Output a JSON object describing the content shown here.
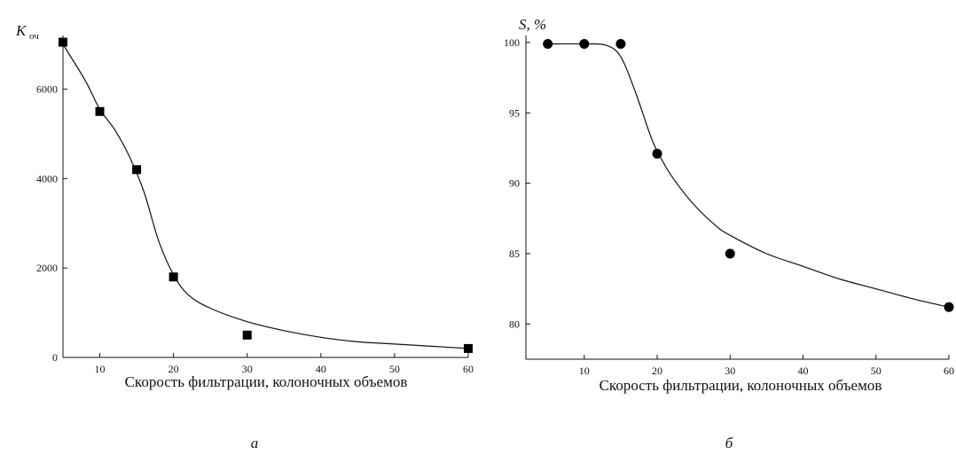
{
  "chart_data": [
    {
      "type": "scatter",
      "panel_label": "а",
      "ylabel_main": "K",
      "ylabel_sub": "оч",
      "xlabel": "Скорость фильтрации, колоночных объемов",
      "x_ticks": [
        "10",
        "20",
        "30",
        "40",
        "50",
        "60"
      ],
      "y_ticks": [
        "0",
        "2000",
        "4000",
        "6000"
      ],
      "xlim": [
        5,
        60
      ],
      "ylim": [
        0,
        7200
      ],
      "marker": "square",
      "points": [
        {
          "x": 5,
          "y": 7050
        },
        {
          "x": 10,
          "y": 5500
        },
        {
          "x": 15,
          "y": 4200
        },
        {
          "x": 20,
          "y": 1800
        },
        {
          "x": 30,
          "y": 500
        },
        {
          "x": 60,
          "y": 200
        }
      ],
      "fit_curve": [
        {
          "x": 5,
          "y": 7000
        },
        {
          "x": 8,
          "y": 6200
        },
        {
          "x": 10,
          "y": 5550
        },
        {
          "x": 12,
          "y": 5100
        },
        {
          "x": 14,
          "y": 4500
        },
        {
          "x": 16,
          "y": 3700
        },
        {
          "x": 18,
          "y": 2600
        },
        {
          "x": 20,
          "y": 1850
        },
        {
          "x": 22,
          "y": 1400
        },
        {
          "x": 25,
          "y": 1100
        },
        {
          "x": 30,
          "y": 800
        },
        {
          "x": 35,
          "y": 600
        },
        {
          "x": 40,
          "y": 450
        },
        {
          "x": 45,
          "y": 350
        },
        {
          "x": 50,
          "y": 300
        },
        {
          "x": 55,
          "y": 250
        },
        {
          "x": 60,
          "y": 200
        }
      ]
    },
    {
      "type": "scatter",
      "panel_label": "б",
      "ylabel_main": "S, %",
      "xlabel": "Скорость фильтрации, колоночных объемов",
      "x_ticks": [
        "10",
        "20",
        "30",
        "40",
        "50",
        "60"
      ],
      "y_ticks": [
        "80",
        "85",
        "90",
        "95",
        "100"
      ],
      "xlim": [
        2,
        60
      ],
      "ylim": [
        77.5,
        100.5
      ],
      "marker": "circle",
      "points": [
        {
          "x": 5,
          "y": 99.9
        },
        {
          "x": 10,
          "y": 99.9
        },
        {
          "x": 15,
          "y": 99.9
        },
        {
          "x": 20,
          "y": 92.1
        },
        {
          "x": 30,
          "y": 85.0
        },
        {
          "x": 60,
          "y": 81.2
        }
      ],
      "fit_curve": [
        {
          "x": 5,
          "y": 99.9
        },
        {
          "x": 10,
          "y": 99.9
        },
        {
          "x": 13,
          "y": 99.8
        },
        {
          "x": 15,
          "y": 99.0
        },
        {
          "x": 17,
          "y": 96.5
        },
        {
          "x": 19,
          "y": 93.5
        },
        {
          "x": 20,
          "y": 92.3
        },
        {
          "x": 22,
          "y": 90.5
        },
        {
          "x": 25,
          "y": 88.5
        },
        {
          "x": 28,
          "y": 87.0
        },
        {
          "x": 30,
          "y": 86.3
        },
        {
          "x": 35,
          "y": 85.0
        },
        {
          "x": 40,
          "y": 84.1
        },
        {
          "x": 45,
          "y": 83.2
        },
        {
          "x": 50,
          "y": 82.5
        },
        {
          "x": 55,
          "y": 81.8
        },
        {
          "x": 60,
          "y": 81.2
        }
      ]
    }
  ]
}
